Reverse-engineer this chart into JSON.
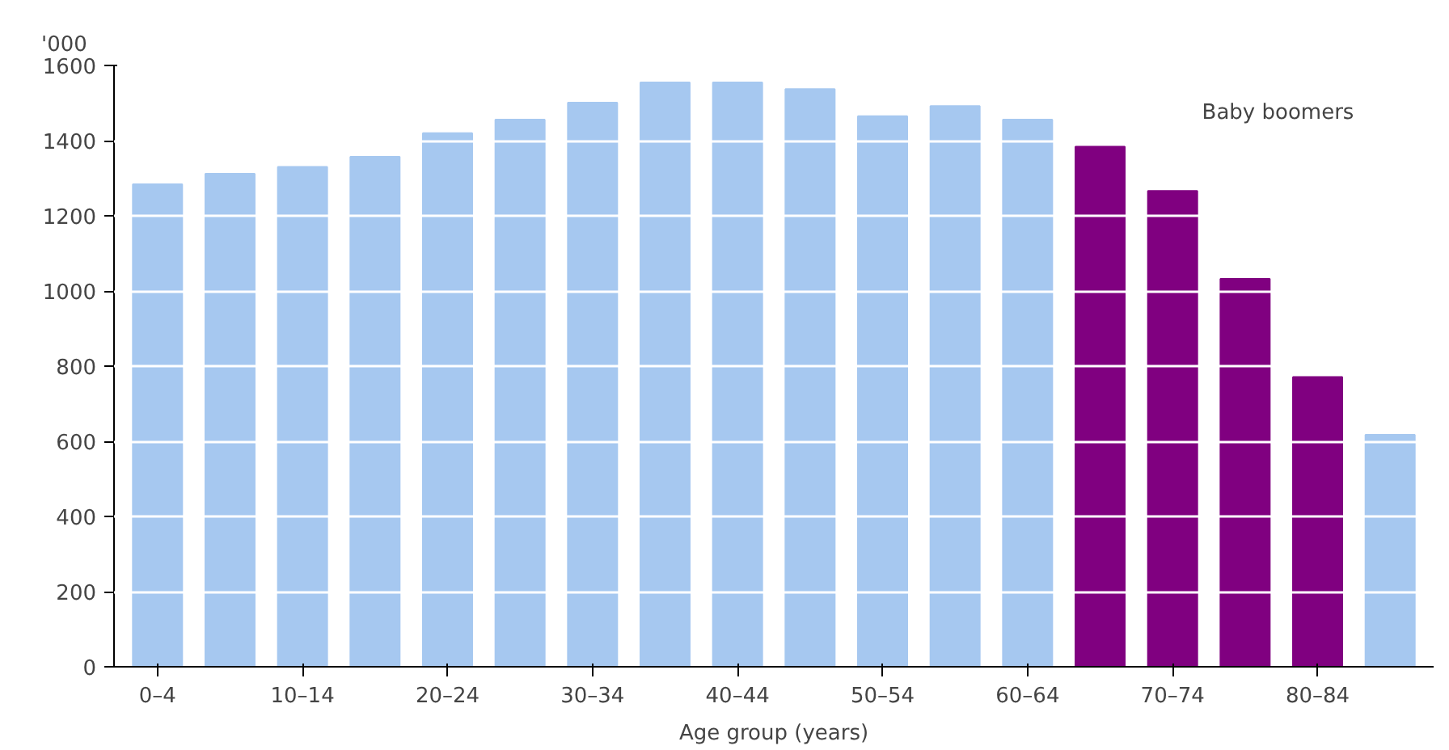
{
  "chart_data": {
    "type": "bar",
    "ylabel": "'000",
    "xlabel": "Age group (years)",
    "categories": [
      "0–4",
      null,
      "10–14",
      null,
      "20–24",
      null,
      "30–34",
      null,
      "40–44",
      null,
      "50–54",
      null,
      "60–64",
      null,
      "70–74",
      null,
      "80–84",
      null
    ],
    "values": [
      1284,
      1312,
      1330,
      1357,
      1420,
      1456,
      1501,
      1555,
      1555,
      1537,
      1465,
      1492,
      1456,
      1384,
      1266,
      1032,
      771,
      617
    ],
    "colors": [
      "#a6c8f0",
      "#a6c8f0",
      "#a6c8f0",
      "#a6c8f0",
      "#a6c8f0",
      "#a6c8f0",
      "#a6c8f0",
      "#a6c8f0",
      "#a6c8f0",
      "#a6c8f0",
      "#a6c8f0",
      "#a6c8f0",
      "#a6c8f0",
      "#800080",
      "#800080",
      "#800080",
      "#800080",
      "#a6c8f0"
    ],
    "ylim": [
      0,
      1600
    ],
    "yticks": [
      0,
      200,
      400,
      600,
      800,
      1000,
      1200,
      1400,
      1600
    ],
    "grid": "y",
    "annotations": [
      "Baby boomers"
    ]
  }
}
